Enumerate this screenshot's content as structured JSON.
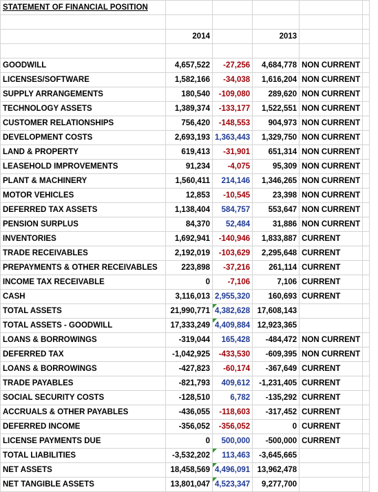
{
  "title": "STATEMENT OF FINANCIAL POSITION",
  "header": {
    "year_a": "2014",
    "year_b": "2013"
  },
  "rows": [
    {
      "label": "GOODWILL",
      "y2014": "4,657,522",
      "change": "-27,256",
      "y2013": "4,684,778",
      "class": "NON CURRENT",
      "tone": "neg",
      "flag": false
    },
    {
      "label": "LICENSES/SOFTWARE",
      "y2014": "1,582,166",
      "change": "-34,038",
      "y2013": "1,616,204",
      "class": "NON CURRENT",
      "tone": "neg",
      "flag": false
    },
    {
      "label": "SUPPLY ARRANGEMENTS",
      "y2014": "180,540",
      "change": "-109,080",
      "y2013": "289,620",
      "class": "NON CURRENT",
      "tone": "neg",
      "flag": false
    },
    {
      "label": "TECHNOLOGY ASSETS",
      "y2014": "1,389,374",
      "change": "-133,177",
      "y2013": "1,522,551",
      "class": "NON CURRENT",
      "tone": "neg",
      "flag": false
    },
    {
      "label": "CUSTOMER RELATIONSHIPS",
      "y2014": "756,420",
      "change": "-148,553",
      "y2013": "904,973",
      "class": "NON CURRENT",
      "tone": "neg",
      "flag": false
    },
    {
      "label": "DEVELOPMENT COSTS",
      "y2014": "2,693,193",
      "change": "1,363,443",
      "y2013": "1,329,750",
      "class": "NON CURRENT",
      "tone": "pos",
      "flag": false
    },
    {
      "label": "LAND & PROPERTY",
      "y2014": "619,413",
      "change": "-31,901",
      "y2013": "651,314",
      "class": "NON CURRENT",
      "tone": "neg",
      "flag": false
    },
    {
      "label": "LEASEHOLD IMPROVEMENTS",
      "y2014": "91,234",
      "change": "-4,075",
      "y2013": "95,309",
      "class": "NON CURRENT",
      "tone": "neg",
      "flag": false
    },
    {
      "label": "PLANT & MACHINERY",
      "y2014": "1,560,411",
      "change": "214,146",
      "y2013": "1,346,265",
      "class": "NON CURRENT",
      "tone": "pos",
      "flag": false
    },
    {
      "label": "MOTOR VEHICLES",
      "y2014": "12,853",
      "change": "-10,545",
      "y2013": "23,398",
      "class": "NON CURRENT",
      "tone": "neg",
      "flag": false
    },
    {
      "label": "DEFERRED TAX ASSETS",
      "y2014": "1,138,404",
      "change": "584,757",
      "y2013": "553,647",
      "class": "NON CURRENT",
      "tone": "pos",
      "flag": false
    },
    {
      "label": "PENSION SURPLUS",
      "y2014": "84,370",
      "change": "52,484",
      "y2013": "31,886",
      "class": "NON CURRENT",
      "tone": "pos",
      "flag": false
    },
    {
      "label": "INVENTORIES",
      "y2014": "1,692,941",
      "change": "-140,946",
      "y2013": "1,833,887",
      "class": "CURRENT",
      "tone": "neg",
      "flag": false
    },
    {
      "label": "TRADE RECEIVABLES",
      "y2014": "2,192,019",
      "change": "-103,629",
      "y2013": "2,295,648",
      "class": "CURRENT",
      "tone": "neg",
      "flag": false
    },
    {
      "label": "PREPAYMENTS & OTHER RECEIVABLES",
      "y2014": "223,898",
      "change": "-37,216",
      "y2013": "261,114",
      "class": "CURRENT",
      "tone": "neg",
      "flag": false
    },
    {
      "label": "INCOME TAX RECEIVABLE",
      "y2014": "0",
      "change": "-7,106",
      "y2013": "7,106",
      "class": "CURRENT",
      "tone": "neg",
      "flag": false
    },
    {
      "label": "CASH",
      "y2014": "3,116,013",
      "change": "2,955,320",
      "y2013": "160,693",
      "class": "CURRENT",
      "tone": "pos",
      "flag": false
    },
    {
      "label": "TOTAL ASSETS",
      "y2014": "21,990,771",
      "change": "4,382,628",
      "y2013": "17,608,143",
      "class": "",
      "tone": "pos",
      "flag": true
    },
    {
      "label": "TOTAL ASSETS - GOODWILL",
      "y2014": "17,333,249",
      "change": "4,409,884",
      "y2013": "12,923,365",
      "class": "",
      "tone": "pos",
      "flag": true
    },
    {
      "label": "LOANS & BORROWINGS",
      "y2014": "-319,044",
      "change": "165,428",
      "y2013": "-484,472",
      "class": "NON CURRENT",
      "tone": "pos",
      "flag": false
    },
    {
      "label": "DEFERRED TAX",
      "y2014": "-1,042,925",
      "change": "-433,530",
      "y2013": "-609,395",
      "class": "NON CURRENT",
      "tone": "neg",
      "flag": false
    },
    {
      "label": "LOANS & BORROWINGS",
      "y2014": "-427,823",
      "change": "-60,174",
      "y2013": "-367,649",
      "class": "CURRENT",
      "tone": "neg",
      "flag": false
    },
    {
      "label": "TRADE PAYABLES",
      "y2014": "-821,793",
      "change": "409,612",
      "y2013": "-1,231,405",
      "class": "CURRENT",
      "tone": "pos",
      "flag": false
    },
    {
      "label": "SOCIAL SECURITY COSTS",
      "y2014": "-128,510",
      "change": "6,782",
      "y2013": "-135,292",
      "class": "CURRENT",
      "tone": "pos",
      "flag": false
    },
    {
      "label": "ACCRUALS & OTHER PAYABLES",
      "y2014": "-436,055",
      "change": "-118,603",
      "y2013": "-317,452",
      "class": "CURRENT",
      "tone": "neg",
      "flag": false
    },
    {
      "label": "DEFERRED INCOME",
      "y2014": "-356,052",
      "change": "-356,052",
      "y2013": "0",
      "class": "CURRENT",
      "tone": "neg",
      "flag": false
    },
    {
      "label": "LICENSE PAYMENTS DUE",
      "y2014": "0",
      "change": "500,000",
      "y2013": "-500,000",
      "class": "CURRENT",
      "tone": "pos",
      "flag": false
    },
    {
      "label": "TOTAL LIABILITIES",
      "y2014": "-3,532,202",
      "change": "113,463",
      "y2013": "-3,645,665",
      "class": "",
      "tone": "pos",
      "flag": true
    },
    {
      "label": "NET ASSETS",
      "y2014": "18,458,569",
      "change": "4,496,091",
      "y2013": "13,962,478",
      "class": "",
      "tone": "pos",
      "flag": true
    },
    {
      "label": "NET TANGIBLE ASSETS",
      "y2014": "13,801,047",
      "change": "4,523,347",
      "y2013": "9,277,700",
      "class": "",
      "tone": "pos",
      "flag": true
    }
  ],
  "colors": {
    "negative": "#9c0006",
    "positive": "#1f3a93",
    "grid": "#d4d4d4",
    "flag_marker": "#2e9b2e"
  }
}
